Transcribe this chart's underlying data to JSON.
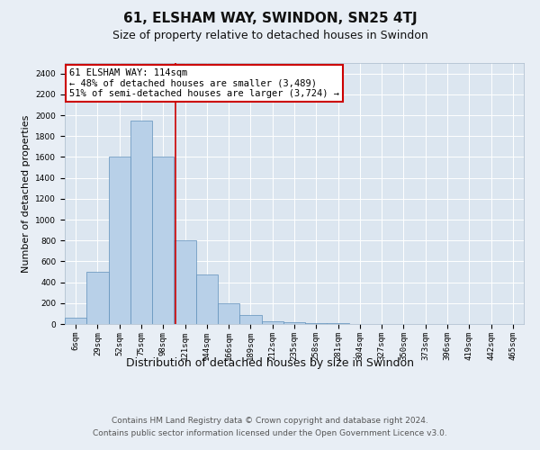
{
  "title": "61, ELSHAM WAY, SWINDON, SN25 4TJ",
  "subtitle": "Size of property relative to detached houses in Swindon",
  "xlabel": "Distribution of detached houses by size in Swindon",
  "ylabel": "Number of detached properties",
  "footer1": "Contains HM Land Registry data © Crown copyright and database right 2024.",
  "footer2": "Contains public sector information licensed under the Open Government Licence v3.0.",
  "categories": [
    "6sqm",
    "29sqm",
    "52sqm",
    "75sqm",
    "98sqm",
    "121sqm",
    "144sqm",
    "166sqm",
    "189sqm",
    "212sqm",
    "235sqm",
    "258sqm",
    "281sqm",
    "304sqm",
    "327sqm",
    "350sqm",
    "373sqm",
    "396sqm",
    "419sqm",
    "442sqm",
    "465sqm"
  ],
  "values": [
    60,
    500,
    1600,
    1950,
    1600,
    800,
    475,
    200,
    90,
    30,
    20,
    10,
    5,
    2,
    1,
    0,
    0,
    0,
    0,
    0,
    0
  ],
  "bar_color": "#b8d0e8",
  "bar_edge_color": "#6090bb",
  "annotation_line1": "61 ELSHAM WAY: 114sqm",
  "annotation_line2": "← 48% of detached houses are smaller (3,489)",
  "annotation_line3": "51% of semi-detached houses are larger (3,724) →",
  "vline_x_index": 4.55,
  "vline_color": "#cc0000",
  "annotation_box_facecolor": "#ffffff",
  "annotation_box_edgecolor": "#cc0000",
  "ylim": [
    0,
    2500
  ],
  "yticks": [
    0,
    200,
    400,
    600,
    800,
    1000,
    1200,
    1400,
    1600,
    1800,
    2000,
    2200,
    2400
  ],
  "background_color": "#e8eef5",
  "plot_bg_color": "#dce6f0",
  "grid_color": "#ffffff",
  "title_fontsize": 11,
  "subtitle_fontsize": 9,
  "xlabel_fontsize": 9,
  "ylabel_fontsize": 8,
  "tick_fontsize": 6.5,
  "annotation_fontsize": 7.5,
  "footer_fontsize": 6.5
}
